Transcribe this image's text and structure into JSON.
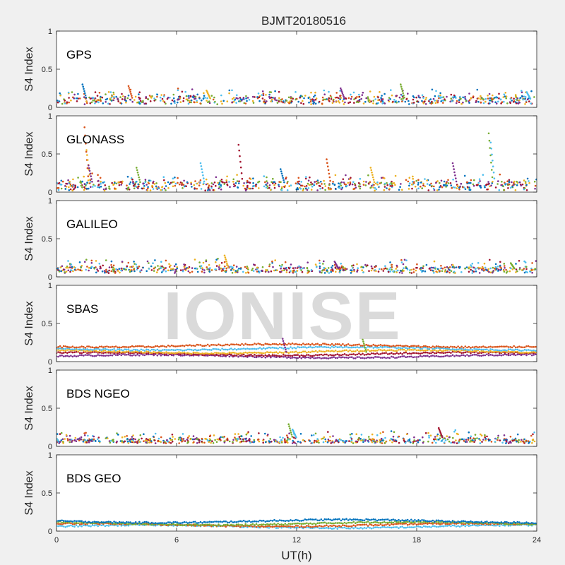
{
  "figure": {
    "title": "BJMT20180516",
    "xlabel": "UT(h)",
    "watermark": "IONISE"
  },
  "colors": {
    "blue": "#0072BD",
    "orange": "#D95319",
    "yellow": "#EDB120",
    "purple": "#7E2F8E",
    "green": "#77AC30",
    "cyan": "#4DBEEE",
    "red": "#A2142F"
  },
  "chart_data": [
    {
      "type": "scatter",
      "panel": "GPS",
      "ylabel": "S4 Index",
      "xlim": [
        0,
        24
      ],
      "ylim": [
        0,
        1
      ],
      "xticks": [
        0,
        6,
        12,
        18,
        24
      ],
      "yticks": [
        0,
        0.5,
        1
      ],
      "grid": false,
      "baseline": 0.09,
      "spread": 0.05,
      "spikes": [
        [
          1.3,
          0.3
        ],
        [
          3.6,
          0.28
        ],
        [
          7.5,
          0.22
        ],
        [
          14.2,
          0.25
        ],
        [
          17.2,
          0.3
        ],
        [
          23.5,
          0.2
        ]
      ]
    },
    {
      "type": "scatter",
      "panel": "GLONASS",
      "ylabel": "S4 Index",
      "xlim": [
        0,
        24
      ],
      "ylim": [
        0,
        1
      ],
      "xticks": [
        0,
        6,
        12,
        18,
        24
      ],
      "yticks": [
        0,
        0.5,
        1
      ],
      "grid": false,
      "baseline": 0.08,
      "spread": 0.06,
      "spikes": [
        [
          1.4,
          0.85
        ],
        [
          1.5,
          0.55
        ],
        [
          1.6,
          0.35
        ],
        [
          4.0,
          0.32
        ],
        [
          7.2,
          0.38
        ],
        [
          9.1,
          0.62
        ],
        [
          11.2,
          0.3
        ],
        [
          13.5,
          0.43
        ],
        [
          15.7,
          0.32
        ],
        [
          19.8,
          0.38
        ],
        [
          21.6,
          0.77
        ],
        [
          21.7,
          0.65
        ]
      ]
    },
    {
      "type": "scatter",
      "panel": "GALILEO",
      "ylabel": "S4 Index",
      "xlim": [
        0,
        24
      ],
      "ylim": [
        0,
        1
      ],
      "xticks": [
        0,
        6,
        12,
        18,
        24
      ],
      "yticks": [
        0,
        0.5,
        1
      ],
      "grid": false,
      "baseline": 0.09,
      "spread": 0.04,
      "spikes": [
        [
          8.4,
          0.28
        ],
        [
          13.9,
          0.2
        ],
        [
          22.7,
          0.18
        ]
      ]
    },
    {
      "type": "scatter",
      "panel": "SBAS",
      "ylabel": "S4 Index",
      "xlim": [
        0,
        24
      ],
      "ylim": [
        0,
        1
      ],
      "xticks": [
        0,
        6,
        12,
        18,
        24
      ],
      "yticks": [
        0,
        0.5,
        1
      ],
      "grid": false,
      "tracks": [
        0.07,
        0.1,
        0.13,
        0.17,
        0.21
      ],
      "spikes": [
        [
          11.3,
          0.3
        ],
        [
          15.3,
          0.29
        ]
      ]
    },
    {
      "type": "scatter",
      "panel": "BDS NGEO",
      "ylabel": "S4 Index",
      "xlim": [
        0,
        24
      ],
      "ylim": [
        0,
        1
      ],
      "xticks": [
        0,
        6,
        12,
        18,
        24
      ],
      "yticks": [
        0,
        0.5,
        1
      ],
      "grid": false,
      "baseline": 0.07,
      "spread": 0.03,
      "spikes": [
        [
          11.6,
          0.29
        ],
        [
          11.8,
          0.22
        ],
        [
          19.1,
          0.24
        ]
      ]
    },
    {
      "type": "scatter",
      "panel": "BDS GEO",
      "ylabel": "S4 Index",
      "xlim": [
        0,
        24
      ],
      "ylim": [
        0,
        1
      ],
      "xticks": [
        0,
        6,
        12,
        18,
        24
      ],
      "yticks": [
        0,
        0.5,
        1
      ],
      "grid": false,
      "tracks": [
        0.06,
        0.08,
        0.1,
        0.13
      ],
      "spikes": []
    }
  ]
}
